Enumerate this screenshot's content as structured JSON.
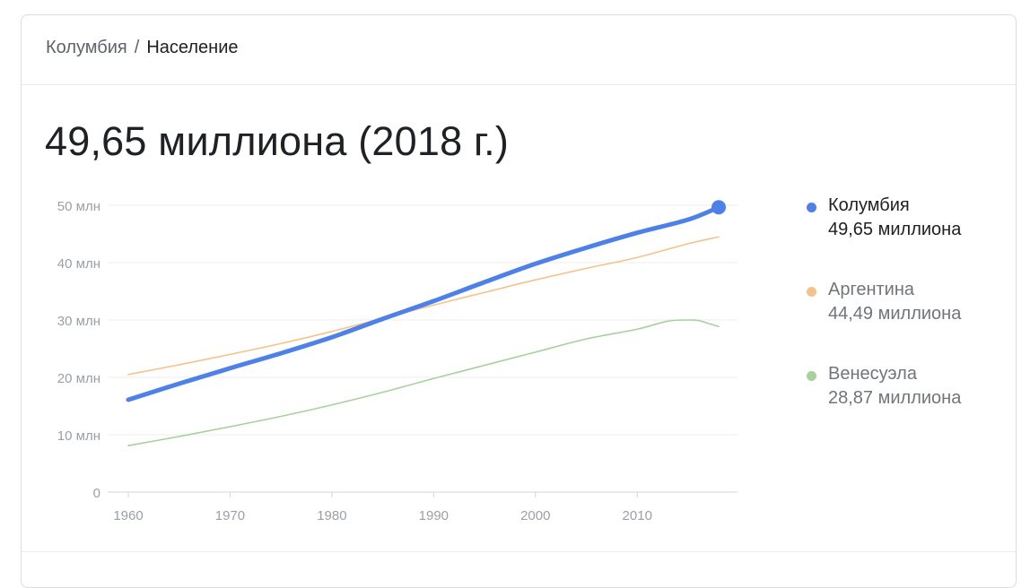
{
  "breadcrumb": {
    "parent": "Колумбия",
    "separator": "/",
    "current": "Население"
  },
  "headline": "49,65 миллиона (2018 г.)",
  "chart_data": {
    "type": "line",
    "title": "",
    "xlabel": "",
    "ylabel": "",
    "xlim": [
      1960,
      2018
    ],
    "ylim": [
      0,
      50
    ],
    "grid": true,
    "legend_position": "right",
    "x_ticks": [
      1960,
      1970,
      1980,
      1990,
      2000,
      2010
    ],
    "x_tick_labels": [
      "1960",
      "1970",
      "1980",
      "1990",
      "2000",
      "2010"
    ],
    "y_ticks": [
      0,
      10,
      20,
      30,
      40,
      50
    ],
    "y_tick_labels": [
      "0",
      "10 млн",
      "20 млн",
      "30 млн",
      "40 млн",
      "50 млн"
    ],
    "series": [
      {
        "name": "Колумбия",
        "value_label": "49,65 миллиона",
        "color": "#4e81e8",
        "emphasis": true,
        "x": [
          1960,
          1965,
          1970,
          1975,
          1980,
          1985,
          1990,
          1995,
          2000,
          2005,
          2010,
          2015,
          2018
        ],
        "y": [
          16.1,
          18.9,
          21.6,
          24.2,
          27.0,
          30.2,
          33.3,
          36.6,
          39.8,
          42.6,
          45.2,
          47.5,
          49.65
        ]
      },
      {
        "name": "Аргентина",
        "value_label": "44,49 миллиона",
        "color": "#f4c38c",
        "emphasis": false,
        "x": [
          1960,
          1965,
          1970,
          1975,
          1980,
          1985,
          1990,
          1995,
          2000,
          2005,
          2010,
          2015,
          2018
        ],
        "y": [
          20.5,
          22.2,
          24.0,
          25.9,
          28.0,
          30.3,
          32.6,
          34.8,
          37.0,
          39.0,
          40.9,
          43.3,
          44.49
        ]
      },
      {
        "name": "Венесуэла",
        "value_label": "28,87 миллиона",
        "color": "#a8d19e",
        "emphasis": false,
        "x": [
          1960,
          1965,
          1970,
          1975,
          1980,
          1985,
          1990,
          1995,
          2000,
          2005,
          2010,
          2013,
          2015,
          2016,
          2017,
          2018
        ],
        "y": [
          8.1,
          9.7,
          11.4,
          13.2,
          15.2,
          17.4,
          19.8,
          22.1,
          24.4,
          26.7,
          28.4,
          29.8,
          30.0,
          29.9,
          29.4,
          28.87
        ]
      }
    ]
  }
}
